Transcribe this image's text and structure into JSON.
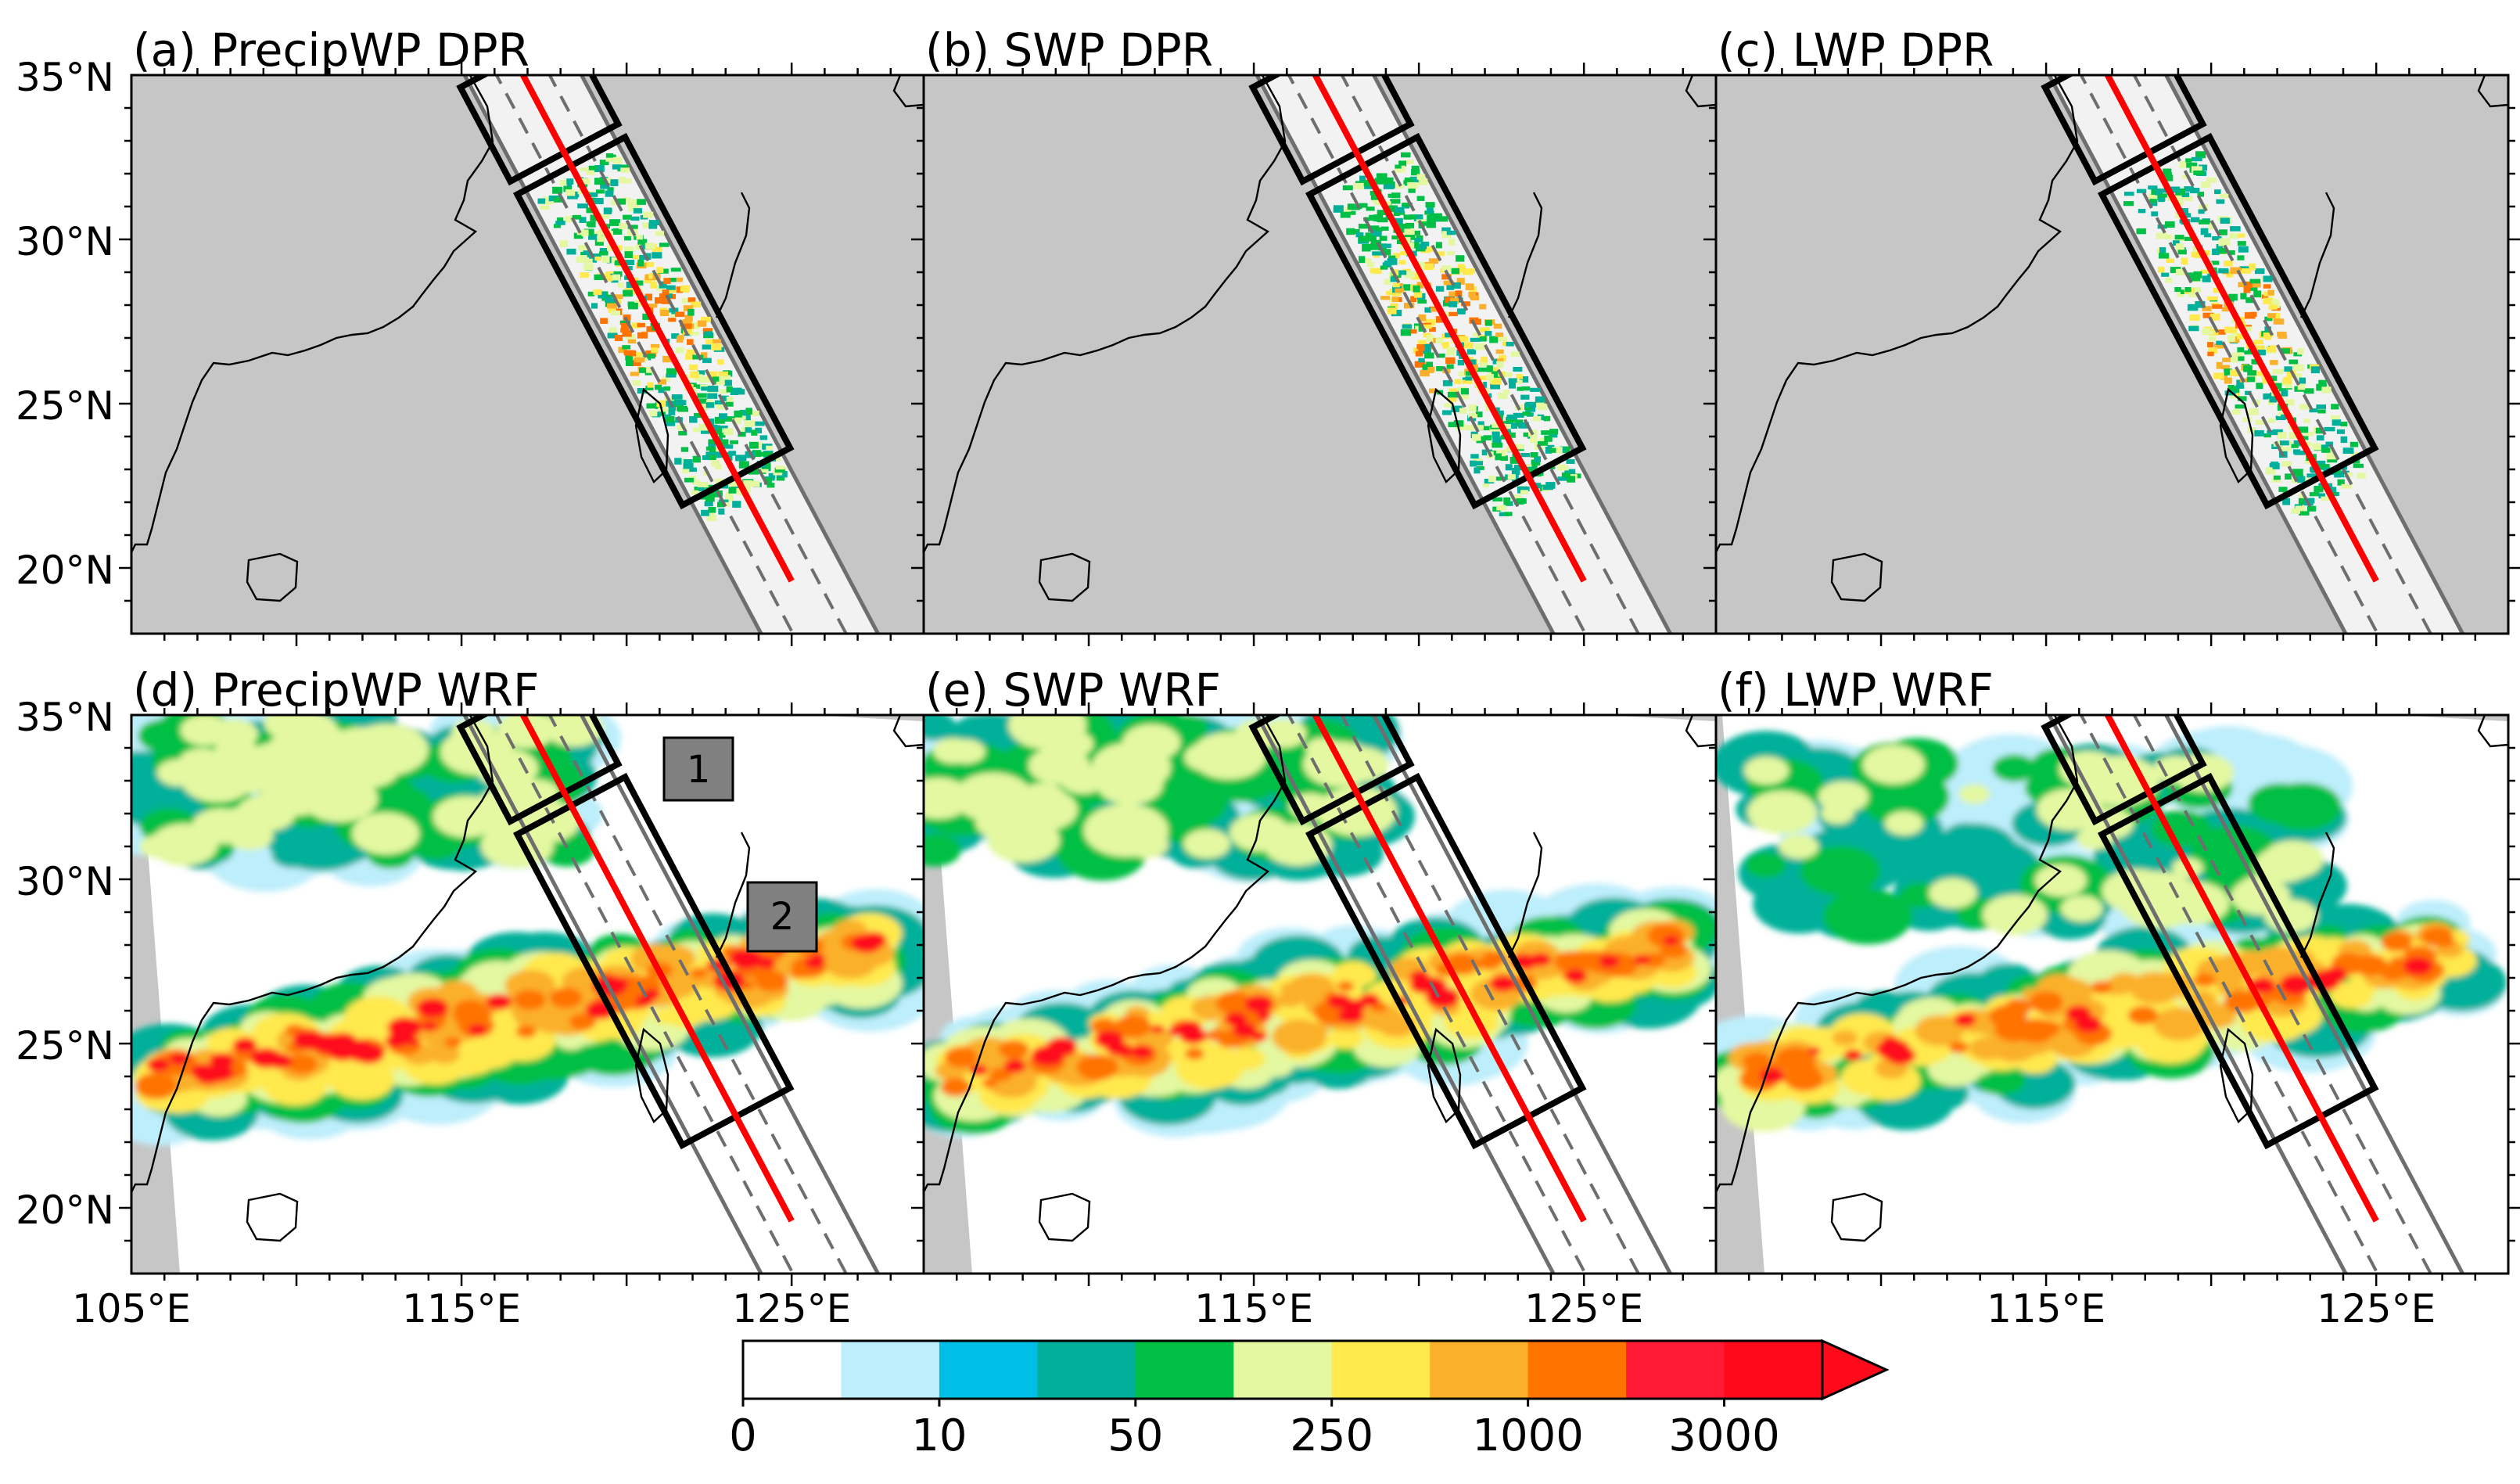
{
  "figure": {
    "panels": [
      {
        "label": "(a) PrecipWP DPR",
        "source": "DPR",
        "variable": "PrecipWP"
      },
      {
        "label": "(b) SWP DPR",
        "source": "DPR",
        "variable": "SWP"
      },
      {
        "label": "(c) LWP DPR",
        "source": "DPR",
        "variable": "LWP"
      },
      {
        "label": "(d) PrecipWP WRF",
        "source": "WRF",
        "variable": "PrecipWP"
      },
      {
        "label": "(e) SWP WRF",
        "source": "WRF",
        "variable": "SWP"
      },
      {
        "label": "(f) LWP WRF",
        "source": "WRF",
        "variable": "LWP"
      }
    ],
    "lat_ticks": [
      {
        "value": 35,
        "label": "35°N"
      },
      {
        "value": 30,
        "label": "30°N"
      },
      {
        "value": 25,
        "label": "25°N"
      },
      {
        "value": 20,
        "label": "20°N"
      }
    ],
    "lon_ticks_left": [
      {
        "value": 105,
        "label": "105°E"
      },
      {
        "value": 115,
        "label": "115°E"
      },
      {
        "value": 125,
        "label": "125°E"
      }
    ],
    "lon_ticks": [
      {
        "value": 115,
        "label": "115°E"
      },
      {
        "value": 125,
        "label": "125°E"
      }
    ],
    "region_labels": [
      {
        "id": "1",
        "label": "1"
      },
      {
        "id": "2",
        "label": "2"
      }
    ],
    "colorbar": {
      "colors": [
        "#ffffff",
        "#bdeefb",
        "#00bfe6",
        "#00b09a",
        "#00bf45",
        "#e3f8a0",
        "#ffe94d",
        "#fbb02b",
        "#ff7300",
        "#ff1a36",
        "#ff0a1a"
      ],
      "extend_color": "#ff0a1a",
      "tick_labels": [
        "0",
        "10",
        "50",
        "250",
        "1000",
        "3000"
      ]
    },
    "colors": {
      "land": "#c6c6c6",
      "swath": "#f2f2f2",
      "track": "#ff0000",
      "box": "#000000"
    }
  },
  "chart_data": {
    "type": "map",
    "extent": {
      "lon": [
        105,
        129
      ],
      "lat": [
        18,
        35
      ]
    },
    "swath_track": {
      "start": {
        "lon": 116.6,
        "lat": 35.5
      },
      "end": {
        "lon": 125.0,
        "lat": 19.6
      }
    },
    "analysis_boxes": [
      "1",
      "2"
    ],
    "colorbar_levels": [
      0,
      5,
      10,
      25,
      50,
      100,
      250,
      500,
      1000,
      2000,
      3000
    ],
    "colorbar_labeled_levels": [
      0,
      10,
      50,
      250,
      1000,
      3000
    ]
  }
}
